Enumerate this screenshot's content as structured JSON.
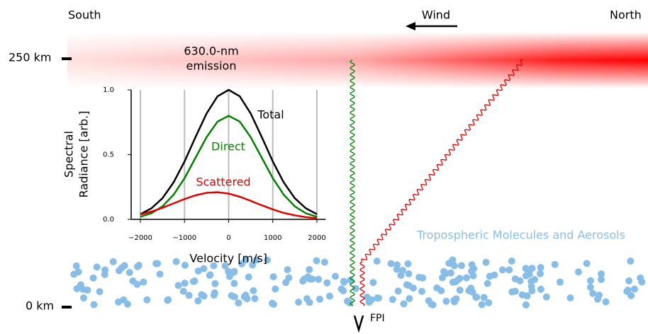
{
  "labels": {
    "south": "South",
    "north": "North",
    "wind": "Wind",
    "altitude_top": "250 km",
    "altitude_bottom": "0 km",
    "emission": [
      "630.0-nm",
      "emission"
    ],
    "troposphere": "Tropospheric Molecules and Aerosols",
    "instrument": "FPI"
  },
  "chart_data": {
    "type": "line",
    "x_label": "Velocity [m/s]",
    "y_label": [
      "Spectral",
      "Radiance [arb.]"
    ],
    "x": [
      -2000,
      -1750,
      -1500,
      -1250,
      -1000,
      -750,
      -500,
      -250,
      0,
      250,
      500,
      750,
      1000,
      1250,
      1500,
      1750,
      2000
    ],
    "series": [
      {
        "name": "Total",
        "color": "#000000",
        "values": [
          0.04,
          0.085,
          0.163,
          0.284,
          0.447,
          0.636,
          0.818,
          0.951,
          1.0,
          0.951,
          0.818,
          0.636,
          0.447,
          0.284,
          0.163,
          0.085,
          0.04
        ]
      },
      {
        "name": "Direct",
        "color": "#008000",
        "values": [
          0.02,
          0.047,
          0.1,
          0.189,
          0.318,
          0.476,
          0.635,
          0.755,
          0.8,
          0.755,
          0.635,
          0.476,
          0.318,
          0.189,
          0.1,
          0.047,
          0.02
        ]
      },
      {
        "name": "Scattered",
        "color": "#e00000",
        "values": [
          0.038,
          0.06,
          0.089,
          0.123,
          0.157,
          0.186,
          0.205,
          0.21,
          0.199,
          0.175,
          0.143,
          0.109,
          0.077,
          0.05,
          0.031,
          0.017,
          0.009
        ]
      }
    ],
    "xlim": [
      -2200,
      2200
    ],
    "ylim": [
      0,
      1
    ],
    "xticks": [
      {
        "value": -2000,
        "label": "−2000"
      },
      {
        "value": -1000,
        "label": "−1000"
      },
      0,
      1000,
      2000
    ],
    "yticks": [
      {
        "value": 0,
        "label": "0.0"
      },
      {
        "value": 0.5,
        "label": "0.5"
      },
      {
        "value": 1,
        "label": "1.0"
      }
    ],
    "grid": true
  }
}
